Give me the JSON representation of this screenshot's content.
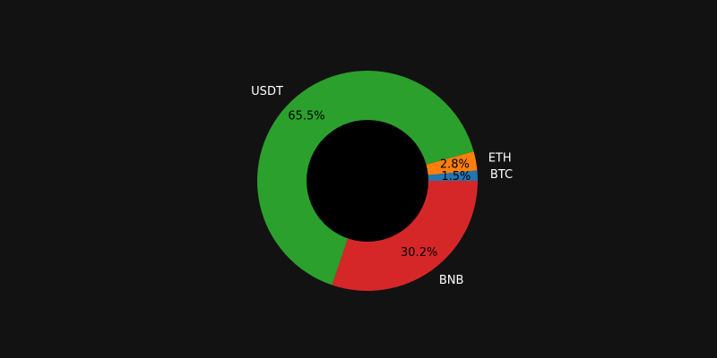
{
  "chart_data": {
    "type": "pie",
    "subtype": "donut",
    "start_angle_deg": 0,
    "direction": "counterclockwise",
    "slices": [
      {
        "name": "BTC",
        "value": 1.5,
        "pct_label": "1.5%",
        "color": "#1f77b4"
      },
      {
        "name": "ETH",
        "value": 2.8,
        "pct_label": "2.8%",
        "color": "#ff7f0e"
      },
      {
        "name": "USDT",
        "value": 65.5,
        "pct_label": "65.5%",
        "color": "#2ca02c"
      },
      {
        "name": "BNB",
        "value": 30.2,
        "pct_label": "30.2%",
        "color": "#d62728"
      }
    ],
    "center_hole_color": "#000000",
    "background_color": "#121212",
    "label_color": "#ffffff",
    "pct_label_color": "#000000"
  }
}
